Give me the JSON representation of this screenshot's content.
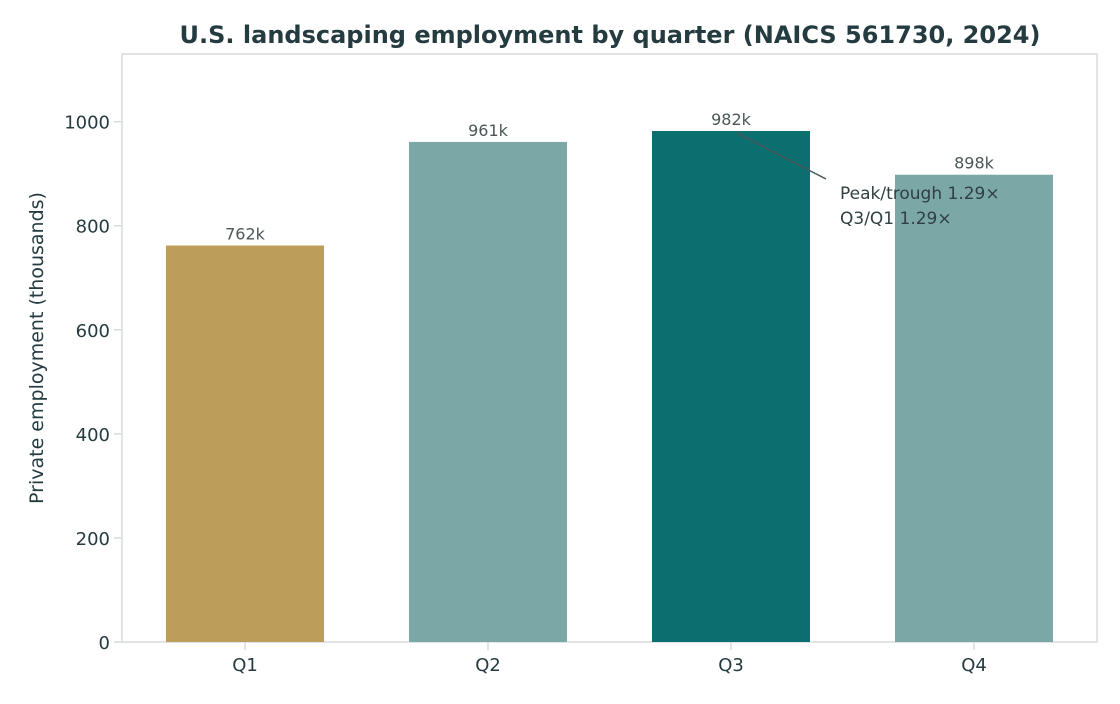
{
  "chart_data": {
    "type": "bar",
    "title": "U.S. landscaping employment by quarter (NAICS 561730, 2024)",
    "xlabel": "",
    "ylabel": "Private employment (thousands)",
    "categories": [
      "Q1",
      "Q2",
      "Q3",
      "Q4"
    ],
    "values": [
      762,
      961,
      982,
      898
    ],
    "data_labels": [
      "762k",
      "961k",
      "982k",
      "898k"
    ],
    "bar_colors": [
      "#bc9e5a",
      "#7ba7a6",
      "#0b6f70",
      "#7ba7a6"
    ],
    "ylim": [
      0,
      1130
    ],
    "yticks": [
      0,
      200,
      400,
      600,
      800,
      1000
    ],
    "grid": false,
    "annotation": {
      "lines": [
        "Peak/trough 1.29×",
        "Q3/Q1 1.29×"
      ],
      "points_to_category": "Q3"
    },
    "colors": {
      "text": "#243b40",
      "axis": "#d7dcdc",
      "label": "#4b5658"
    }
  }
}
